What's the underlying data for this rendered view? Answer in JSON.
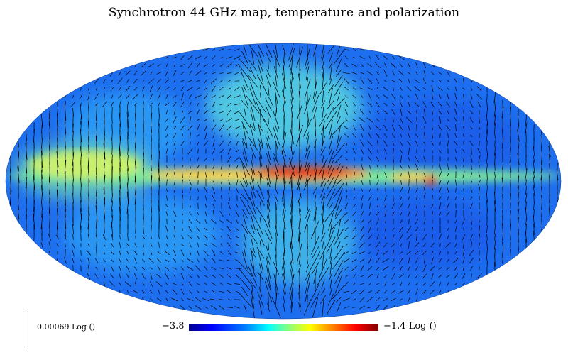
{
  "title": "Synchrotron 44 GHz map, temperature and polarization",
  "scale_bar": {
    "label": "0.00069 Log ()"
  },
  "colorbar": {
    "min_label": "−3.8",
    "max_label": "−1.4 Log ()",
    "min_value": -3.8,
    "max_value": -1.4,
    "unit": "Log ()"
  },
  "map": {
    "projection": "Mollweide",
    "colormap": "jet",
    "overlay": "polarization vectors"
  }
}
